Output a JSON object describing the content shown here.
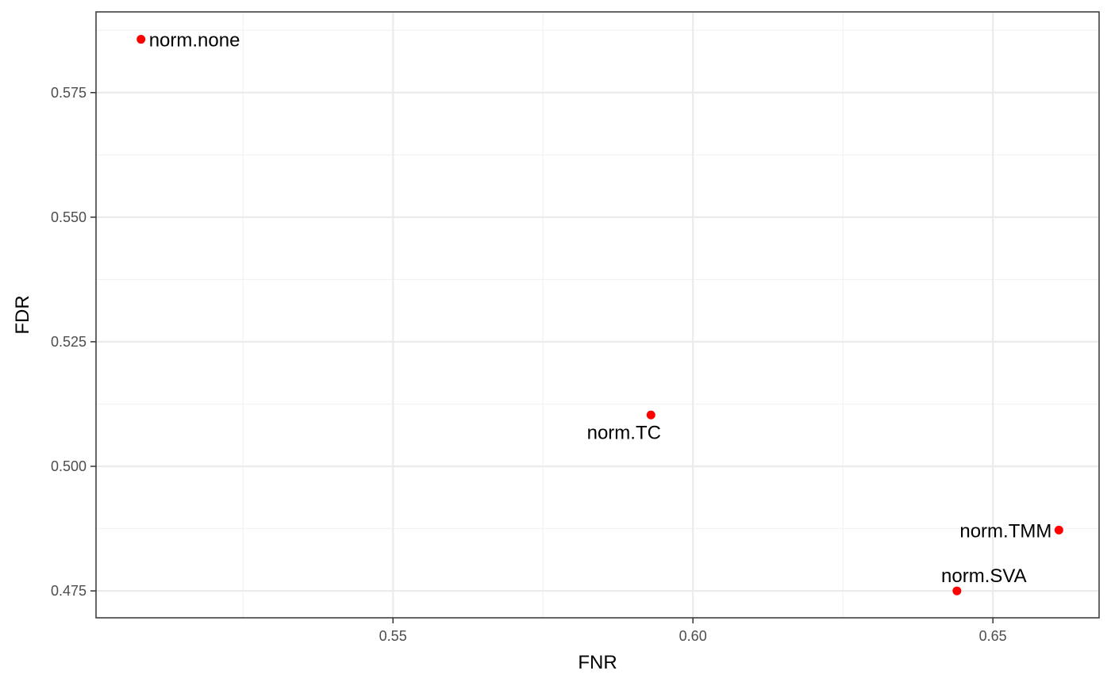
{
  "chart_data": {
    "type": "scatter",
    "title": "",
    "xlabel": "FNR",
    "ylabel": "FDR",
    "xlim": [
      0.5005,
      0.6677
    ],
    "ylim": [
      0.4696,
      0.5912
    ],
    "x_ticks": [
      0.55,
      0.6,
      0.65
    ],
    "x_tick_labels": [
      "0.55",
      "0.60",
      "0.65"
    ],
    "y_ticks": [
      0.475,
      0.5,
      0.525,
      0.55,
      0.575
    ],
    "y_tick_labels": [
      "0.475",
      "0.500",
      "0.525",
      "0.550",
      "0.575"
    ],
    "grid": true,
    "point_color": "#ff0000",
    "points": [
      {
        "label": "norm.none",
        "x": 0.508,
        "y": 0.5857,
        "label_pos": "right"
      },
      {
        "label": "norm.TC",
        "x": 0.593,
        "y": 0.5103,
        "label_pos": "below-left"
      },
      {
        "label": "norm.TMM",
        "x": 0.661,
        "y": 0.4872,
        "label_pos": "left"
      },
      {
        "label": "norm.SVA",
        "x": 0.644,
        "y": 0.475,
        "label_pos": "above"
      }
    ]
  }
}
